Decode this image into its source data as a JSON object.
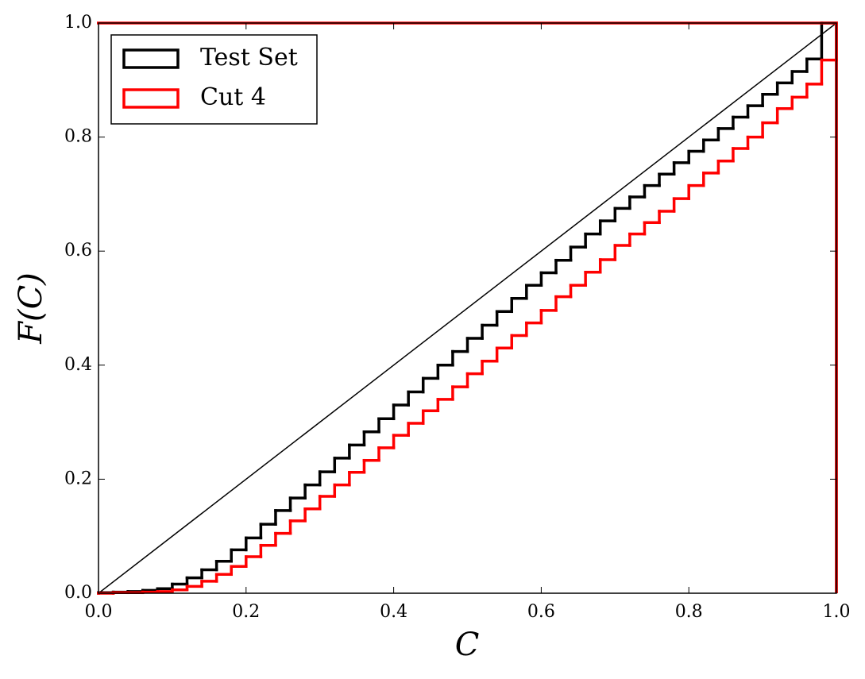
{
  "chart_data": {
    "type": "step-cumulative-histogram",
    "xlabel": "C",
    "ylabel": "F(C)",
    "xlim": [
      0,
      1
    ],
    "ylim": [
      0,
      1
    ],
    "xticks": [
      {
        "value": 0,
        "label": "0.0"
      },
      {
        "value": 0.2,
        "label": "0.2"
      },
      {
        "value": 0.4,
        "label": "0.4"
      },
      {
        "value": 0.6,
        "label": "0.6"
      },
      {
        "value": 0.8,
        "label": "0.8"
      },
      {
        "value": 1,
        "label": "1.0"
      }
    ],
    "yticks": [
      {
        "value": 0,
        "label": "0.0"
      },
      {
        "value": 0.2,
        "label": "0.2"
      },
      {
        "value": 0.4,
        "label": "0.4"
      },
      {
        "value": 0.6,
        "label": "0.6"
      },
      {
        "value": 0.8,
        "label": "0.8"
      },
      {
        "value": 1,
        "label": "1.0"
      }
    ],
    "bins": [
      0,
      0.02,
      0.04,
      0.06,
      0.08,
      0.1,
      0.12,
      0.14,
      0.16,
      0.18,
      0.2,
      0.22,
      0.24,
      0.26,
      0.28,
      0.3,
      0.32,
      0.34,
      0.36,
      0.38,
      0.4,
      0.42,
      0.44,
      0.46,
      0.48,
      0.5,
      0.52,
      0.54,
      0.56,
      0.58,
      0.6,
      0.62,
      0.64,
      0.66,
      0.68,
      0.7,
      0.72,
      0.74,
      0.76,
      0.78,
      0.8,
      0.82,
      0.84,
      0.86,
      0.88,
      0.9,
      0.92,
      0.94,
      0.96,
      0.98,
      1
    ],
    "series": [
      {
        "name": "Test Set",
        "color": "#000000",
        "values": [
          0.001,
          0.002,
          0.003,
          0.005,
          0.008,
          0.016,
          0.027,
          0.041,
          0.056,
          0.076,
          0.097,
          0.121,
          0.145,
          0.167,
          0.19,
          0.213,
          0.237,
          0.26,
          0.283,
          0.306,
          0.33,
          0.353,
          0.377,
          0.4,
          0.424,
          0.447,
          0.47,
          0.494,
          0.517,
          0.54,
          0.562,
          0.584,
          0.607,
          0.63,
          0.653,
          0.675,
          0.695,
          0.715,
          0.735,
          0.755,
          0.775,
          0.795,
          0.815,
          0.835,
          0.855,
          0.875,
          0.895,
          0.915,
          0.937,
          1.0
        ]
      },
      {
        "name": "Cut 4",
        "color": "#ff0000",
        "values": [
          0,
          0.001,
          0.001,
          0.002,
          0.003,
          0.006,
          0.012,
          0.021,
          0.033,
          0.047,
          0.064,
          0.084,
          0.105,
          0.127,
          0.148,
          0.17,
          0.19,
          0.212,
          0.233,
          0.255,
          0.277,
          0.298,
          0.32,
          0.34,
          0.362,
          0.385,
          0.407,
          0.43,
          0.452,
          0.474,
          0.496,
          0.52,
          0.54,
          0.563,
          0.585,
          0.61,
          0.63,
          0.65,
          0.67,
          0.692,
          0.715,
          0.737,
          0.758,
          0.78,
          0.8,
          0.825,
          0.85,
          0.87,
          0.893,
          0.935,
          1.0
        ]
      }
    ],
    "reference_line": {
      "x": [
        0,
        1
      ],
      "y": [
        0,
        1
      ],
      "color": "#000000"
    },
    "legend": "upper left"
  }
}
